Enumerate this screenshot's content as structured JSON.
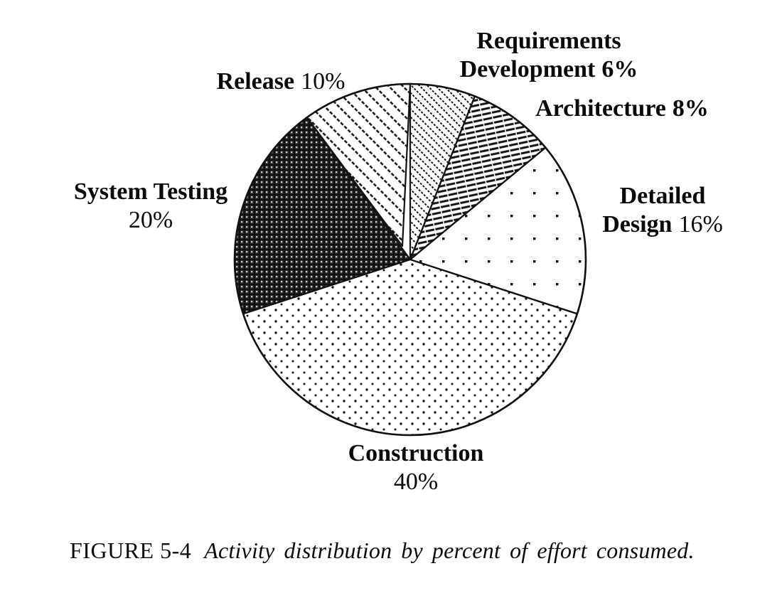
{
  "figure_id": "FIGURE 5-4",
  "caption": {
    "label": "FIGURE 5-4",
    "text": "Activity distribution by percent of effort consumed."
  },
  "chart_data": {
    "type": "pie",
    "title": "Activity distribution by percent of effort consumed",
    "unit": "percent of effort",
    "total": 100,
    "start_angle_deg": 0,
    "direction": "clockwise",
    "ink_color": "#111111",
    "background_color": "#ffffff",
    "slices": [
      {
        "label": "Requirements Development",
        "value": 6,
        "pattern": "diag-thin-dashed"
      },
      {
        "label": "Architecture",
        "value": 8,
        "pattern": "stripes-horizontal"
      },
      {
        "label": "Detailed Design",
        "value": 16,
        "pattern": "dots-sparse"
      },
      {
        "label": "Construction",
        "value": 40,
        "pattern": "dots-dense"
      },
      {
        "label": "System Testing",
        "value": 20,
        "pattern": "weave-dark"
      },
      {
        "label": "Release",
        "value": 10,
        "pattern": "diag-wide-dashed"
      }
    ]
  },
  "labels": {
    "requirements": {
      "name1": "Requirements",
      "name2": "Development",
      "pct": "6%"
    },
    "architecture": {
      "name": "Architecture",
      "pct": "8%"
    },
    "detailed_design": {
      "name1": "Detailed",
      "name2": "Design",
      "pct": "16%"
    },
    "construction": {
      "name": "Construction",
      "pct": "40%"
    },
    "system_testing": {
      "name": "System Testing",
      "pct": "20%"
    },
    "release": {
      "name": "Release",
      "pct": "10%"
    }
  }
}
